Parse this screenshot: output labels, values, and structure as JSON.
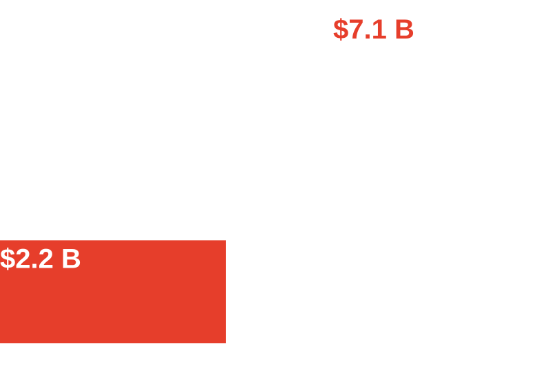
{
  "colors": {
    "accent": "#e63e2b",
    "background": "#ffffff",
    "label_inside": "#ffffff"
  },
  "chart_data": {
    "type": "bar",
    "categories": [
      "",
      ""
    ],
    "values": [
      2.2,
      7.1
    ],
    "data_labels": [
      "$2.2 B",
      "$7.1 B"
    ],
    "ylim": [
      0,
      7.1
    ],
    "grid": false
  }
}
